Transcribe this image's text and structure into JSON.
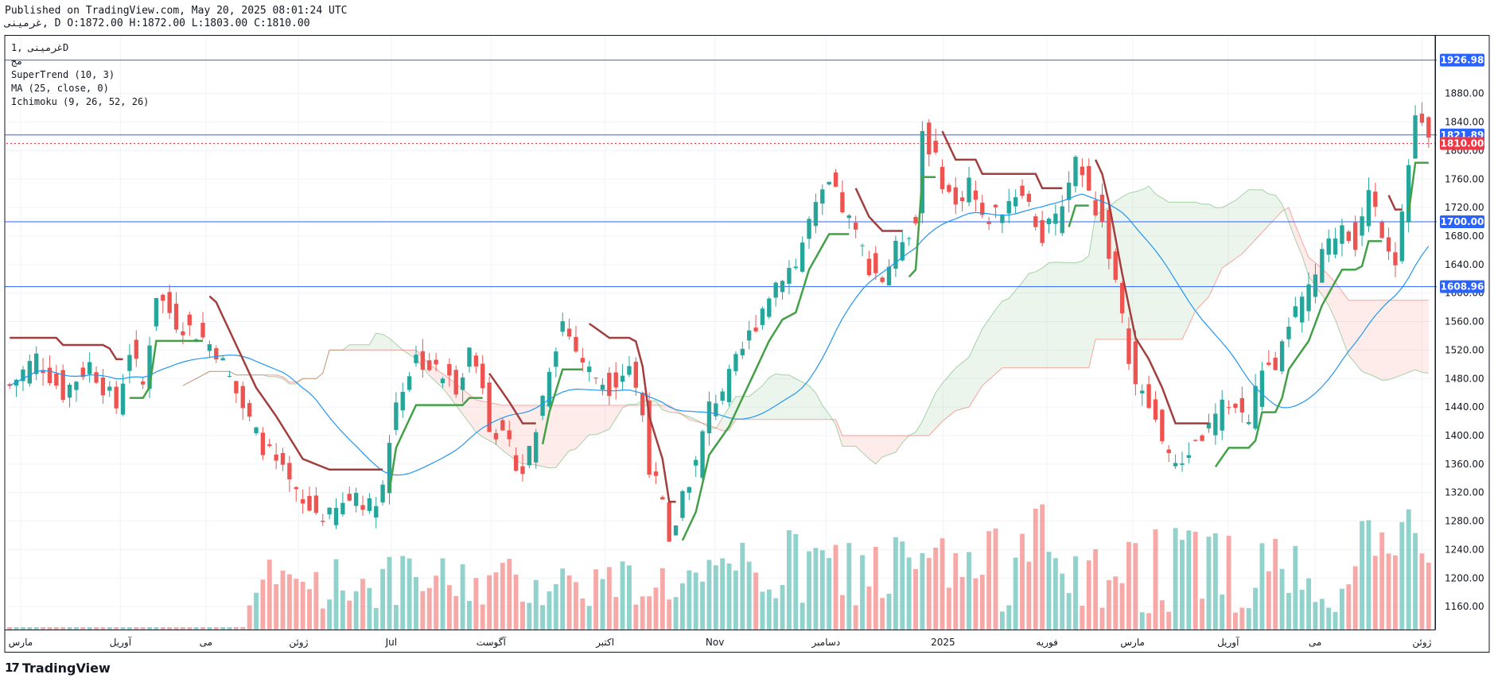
{
  "header": {
    "published": "Published on TradingView.com, May 20, 2025 08:01:24 UTC",
    "ohlc": "غرمینی, D O:1872.00 H:1872.00 L:1803.00 C:1810.00"
  },
  "legend": [
    "غرمینی ,1D",
    "مج",
    "SuperTrend (10, 3)",
    "MA (25, close, 0)",
    "Ichimoku (9, 26, 52, 26)"
  ],
  "brand": {
    "logo": "17",
    "name": "TradingView"
  },
  "colors": {
    "up": "#26a69a",
    "down": "#ef5350",
    "hline": "#2962ff",
    "last": "#f23645",
    "ma": "#2196f3",
    "st_up": "#43a047",
    "st_down": "#a33e3e"
  },
  "chart_data": {
    "type": "candlestick",
    "price_range": [
      1130,
      1960
    ],
    "y_ticks": [
      1160,
      1200,
      1240,
      1280,
      1320,
      1360,
      1400,
      1440,
      1480,
      1520,
      1560,
      1600,
      1640,
      1680,
      1720,
      1760,
      1800,
      1840,
      1880
    ],
    "x_ticks": [
      {
        "label": "مارس",
        "t": 0.01
      },
      {
        "label": "آوریل",
        "t": 0.08
      },
      {
        "label": "می",
        "t": 0.14
      },
      {
        "label": "ژوئن",
        "t": 0.205
      },
      {
        "label": "Jul",
        "t": 0.27
      },
      {
        "label": "آگوست",
        "t": 0.34
      },
      {
        "label": "اکتبر",
        "t": 0.42
      },
      {
        "label": "Nov",
        "t": 0.497
      },
      {
        "label": "دسامبر",
        "t": 0.575
      },
      {
        "label": "2025",
        "t": 0.657
      },
      {
        "label": "فوریه",
        "t": 0.73
      },
      {
        "label": "مارس",
        "t": 0.79
      },
      {
        "label": "آوریل",
        "t": 0.857
      },
      {
        "label": "می",
        "t": 0.918
      },
      {
        "label": "ژوئن",
        "t": 0.993
      }
    ],
    "horizontal_lines": [
      1926.98,
      1821.89,
      1700.0,
      1608.96
    ],
    "last_price": 1810.0,
    "price_labels": [
      {
        "value": 1926.98,
        "text": "1926.98",
        "kind": "line"
      },
      {
        "value": 1821.89,
        "text": "1821.89",
        "kind": "line"
      },
      {
        "value": 1810.0,
        "text": "1810.00",
        "kind": "last"
      },
      {
        "value": 1700.0,
        "text": "1700.00",
        "kind": "line"
      },
      {
        "value": 1608.96,
        "text": "1608.96",
        "kind": "line"
      }
    ],
    "close_path": [
      [
        0,
        1470
      ],
      [
        4,
        1510
      ],
      [
        8,
        1460
      ],
      [
        12,
        1500
      ],
      [
        16,
        1440
      ],
      [
        18,
        1520
      ],
      [
        20,
        1470
      ],
      [
        22,
        1600
      ],
      [
        25,
        1560
      ],
      [
        28,
        1545
      ],
      [
        31,
        1520
      ],
      [
        34,
        1460
      ],
      [
        37,
        1400
      ],
      [
        40,
        1360
      ],
      [
        44,
        1300
      ],
      [
        48,
        1285
      ],
      [
        52,
        1320
      ],
      [
        54,
        1300
      ],
      [
        56,
        1330
      ],
      [
        58,
        1450
      ],
      [
        61,
        1510
      ],
      [
        64,
        1490
      ],
      [
        67,
        1470
      ],
      [
        69,
        1520
      ],
      [
        71,
        1475
      ],
      [
        72,
        1420
      ],
      [
        75,
        1380
      ],
      [
        77,
        1350
      ],
      [
        79,
        1410
      ],
      [
        81,
        1500
      ],
      [
        83,
        1560
      ],
      [
        85,
        1520
      ],
      [
        87,
        1490
      ],
      [
        90,
        1470
      ],
      [
        93,
        1500
      ],
      [
        95,
        1430
      ],
      [
        96,
        1360
      ],
      [
        98,
        1300
      ],
      [
        99,
        1240
      ],
      [
        101,
        1320
      ],
      [
        103,
        1360
      ],
      [
        105,
        1440
      ],
      [
        108,
        1480
      ],
      [
        111,
        1540
      ],
      [
        114,
        1600
      ],
      [
        116,
        1630
      ],
      [
        118,
        1640
      ],
      [
        120,
        1700
      ],
      [
        123,
        1750
      ],
      [
        125,
        1720
      ],
      [
        127,
        1680
      ],
      [
        129,
        1640
      ],
      [
        131,
        1620
      ],
      [
        134,
        1680
      ],
      [
        136,
        1700
      ],
      [
        137,
        1830
      ],
      [
        140,
        1760
      ],
      [
        142,
        1720
      ],
      [
        144,
        1760
      ],
      [
        146,
        1700
      ],
      [
        149,
        1720
      ],
      [
        152,
        1750
      ],
      [
        155,
        1680
      ],
      [
        157,
        1700
      ],
      [
        160,
        1790
      ],
      [
        162,
        1740
      ],
      [
        164,
        1700
      ],
      [
        165,
        1660
      ],
      [
        167,
        1560
      ],
      [
        169,
        1470
      ],
      [
        171,
        1440
      ],
      [
        173,
        1400
      ],
      [
        175,
        1350
      ],
      [
        177,
        1380
      ],
      [
        180,
        1410
      ],
      [
        183,
        1450
      ],
      [
        186,
        1420
      ],
      [
        188,
        1500
      ],
      [
        190,
        1480
      ],
      [
        192,
        1560
      ],
      [
        195,
        1600
      ],
      [
        197,
        1650
      ],
      [
        200,
        1700
      ],
      [
        202,
        1670
      ],
      [
        204,
        1740
      ],
      [
        206,
        1690
      ],
      [
        208,
        1650
      ],
      [
        210,
        1780
      ],
      [
        211,
        1850
      ],
      [
        213,
        1810
      ]
    ],
    "bars": 214
  }
}
